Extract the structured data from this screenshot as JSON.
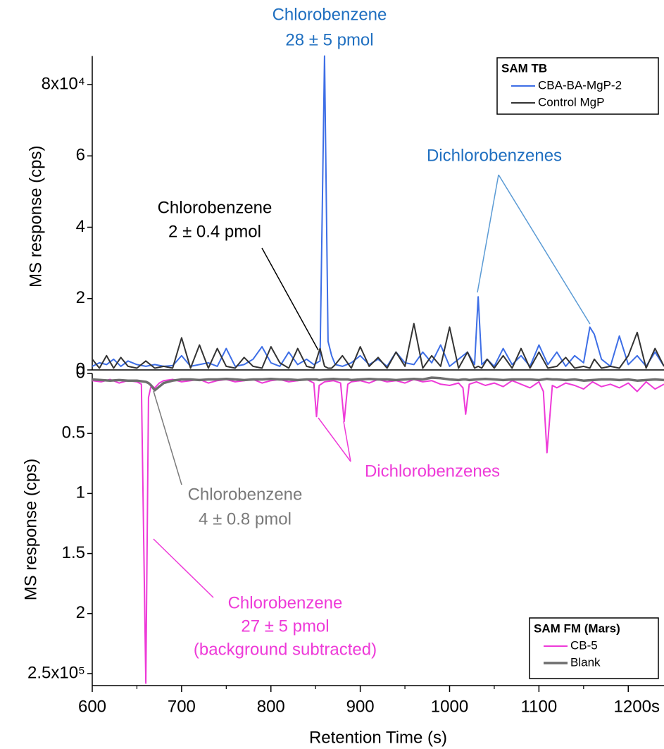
{
  "chart_data": [
    {
      "type": "line",
      "y_label": "MS response (cps)",
      "xlim": [
        600,
        1240
      ],
      "ylim": [
        0,
        88000
      ],
      "inverted": false,
      "yticks": [
        0,
        {
          "value": 20000,
          "label": "2"
        },
        {
          "value": 40000,
          "label": "4"
        },
        {
          "value": 60000,
          "label": "6"
        },
        {
          "value": 80000,
          "label": "8x10⁴"
        }
      ],
      "legend_title": "SAM TB",
      "legend_position": "upper right",
      "x": [
        600,
        608,
        616,
        624,
        632,
        640,
        650,
        660,
        670,
        680,
        690,
        700,
        710,
        720,
        730,
        740,
        750,
        760,
        770,
        780,
        790,
        800,
        810,
        820,
        830,
        840,
        848,
        855,
        860,
        864,
        868,
        872,
        880,
        890,
        900,
        910,
        920,
        930,
        940,
        950,
        960,
        970,
        980,
        990,
        1000,
        1010,
        1020,
        1028,
        1032,
        1036,
        1042,
        1050,
        1060,
        1070,
        1080,
        1090,
        1100,
        1110,
        1120,
        1130,
        1140,
        1150,
        1157,
        1162,
        1170,
        1180,
        1190,
        1200,
        1210,
        1220,
        1230,
        1240
      ],
      "series": [
        {
          "name": "CBA-BA-MgP-2",
          "color": "#3d6ee6",
          "width": 2,
          "values": [
            1000,
            2000,
            1500,
            3000,
            1000,
            2500,
            1500,
            1000,
            1500,
            1000,
            1200,
            4000,
            1000,
            1500,
            2000,
            1000,
            6000,
            1000,
            1500,
            3000,
            6500,
            2000,
            1000,
            5000,
            1500,
            3000,
            1500,
            2500,
            88000,
            8000,
            4000,
            1500,
            1000,
            2000,
            4000,
            1500,
            3000,
            1000,
            5000,
            2000,
            1500,
            5000,
            2000,
            7000,
            1000,
            3000,
            5000,
            1500,
            20500,
            1500,
            3000,
            1000,
            6000,
            1500,
            4000,
            1000,
            7000,
            1500,
            5000,
            1000,
            4000,
            2000,
            12000,
            10000,
            3000,
            1000,
            9500,
            1500,
            4000,
            1000,
            5000,
            1000
          ]
        },
        {
          "name": "Control MgP",
          "color": "#333333",
          "width": 2,
          "values": [
            3000,
            500,
            4000,
            500,
            3500,
            1000,
            500,
            2500,
            500,
            1000,
            500,
            9000,
            500,
            7000,
            500,
            6000,
            1000,
            500,
            3500,
            1000,
            500,
            6500,
            2000,
            500,
            6000,
            1000,
            500,
            6000,
            1000,
            500,
            500,
            1500,
            4000,
            500,
            6500,
            1000,
            3500,
            500,
            5000,
            1000,
            13000,
            500,
            4000,
            1000,
            12000,
            500,
            5000,
            500,
            1000,
            500,
            3000,
            500,
            4000,
            500,
            6000,
            500,
            5000,
            500,
            1000,
            3500,
            500,
            1000,
            500,
            3000,
            500,
            1000,
            500,
            4000,
            10500,
            500,
            6000,
            1000
          ]
        }
      ],
      "annotations": [
        {
          "text": [
            "Chlorobenzene",
            "28 ± 5 pmol"
          ],
          "color": "#1f6fc0"
        },
        {
          "text": [
            "Dichlorobenzenes"
          ],
          "color": "#1f6fc0"
        },
        {
          "text": [
            "Chlorobenzene",
            "2 ± 0.4 pmol"
          ],
          "color": "#000000"
        }
      ]
    },
    {
      "type": "line",
      "y_label": "MS response (cps)",
      "x_label": "Retention Time (s)",
      "xlim": [
        600,
        1240
      ],
      "xticks": [
        600,
        700,
        800,
        900,
        1000,
        1100,
        {
          "value": 1200,
          "label": "1200s"
        }
      ],
      "xminorticks": [
        650,
        750,
        850,
        950,
        1050,
        1150
      ],
      "ylim": [
        0,
        260000
      ],
      "inverted": true,
      "yticks": [
        0,
        {
          "value": 50000,
          "label": "0.5"
        },
        {
          "value": 100000,
          "label": "1"
        },
        {
          "value": 150000,
          "label": "1.5"
        },
        {
          "value": 200000,
          "label": "2"
        },
        {
          "value": 250000,
          "label": "2.5x10⁵"
        }
      ],
      "legend_title": "SAM FM (Mars)",
      "legend_position": "lower right",
      "x": [
        600,
        610,
        620,
        630,
        640,
        650,
        655,
        660,
        663,
        666,
        670,
        675,
        680,
        690,
        700,
        710,
        720,
        730,
        740,
        750,
        760,
        770,
        780,
        790,
        800,
        810,
        820,
        830,
        840,
        848,
        851,
        854,
        860,
        870,
        878,
        882,
        886,
        890,
        900,
        910,
        920,
        930,
        940,
        950,
        960,
        970,
        980,
        990,
        1000,
        1010,
        1015,
        1018,
        1022,
        1030,
        1040,
        1050,
        1060,
        1070,
        1080,
        1090,
        1100,
        1105,
        1109,
        1115,
        1120,
        1130,
        1140,
        1150,
        1160,
        1170,
        1180,
        1190,
        1200,
        1210,
        1220,
        1230,
        1240
      ],
      "series": [
        {
          "name": "CB-5",
          "color": "#ee3ad8",
          "width": 2,
          "values": [
            6000,
            7000,
            5000,
            8000,
            6000,
            7000,
            9000,
            258000,
            20000,
            10000,
            12000,
            8000,
            6000,
            5000,
            7000,
            6000,
            5000,
            8000,
            6000,
            5000,
            7000,
            6000,
            5000,
            8000,
            6000,
            5000,
            7000,
            6000,
            5000,
            8000,
            36000,
            10000,
            7000,
            6000,
            8000,
            40000,
            9000,
            7000,
            6000,
            8000,
            5000,
            7000,
            6000,
            8000,
            5000,
            7000,
            6000,
            9000,
            10000,
            8000,
            12000,
            34000,
            9000,
            7000,
            10000,
            8000,
            11000,
            6000,
            9000,
            12000,
            7000,
            15000,
            66000,
            10000,
            12000,
            8000,
            10000,
            13000,
            7000,
            11000,
            9000,
            12000,
            8000,
            15000,
            7000,
            13000,
            9000
          ]
        },
        {
          "name": "Blank",
          "color": "#6e6e6e",
          "width": 3.5,
          "values": [
            5000,
            5500,
            6000,
            5500,
            6000,
            6000,
            6500,
            7000,
            8000,
            10000,
            14000,
            11000,
            8000,
            6000,
            5000,
            5000,
            5500,
            5000,
            5000,
            4500,
            5000,
            5500,
            5000,
            5000,
            4500,
            5000,
            5000,
            5500,
            5000,
            5000,
            5000,
            5500,
            5000,
            4500,
            5000,
            5000,
            5000,
            5500,
            5000,
            4500,
            5000,
            5000,
            5500,
            5000,
            4500,
            5000,
            3500,
            4000,
            5000,
            5500,
            5000,
            5000,
            5500,
            5000,
            4500,
            5000,
            5500,
            5000,
            5000,
            5000,
            5500,
            5000,
            4500,
            5000,
            5000,
            5500,
            5000,
            6000,
            5500,
            5000,
            5000,
            5500,
            5000,
            6000,
            5500,
            5000,
            5500
          ]
        }
      ],
      "annotations": [
        {
          "text": [
            "Dichlorobenzenes"
          ],
          "color": "#ee3ad8"
        },
        {
          "text": [
            "Chlorobenzene",
            "4 ± 0.8 pmol"
          ],
          "color": "#7a7a7a"
        },
        {
          "text": [
            "Chlorobenzene",
            "27 ± 5 pmol",
            "(background subtracted)"
          ],
          "color": "#ee3ad8"
        }
      ]
    }
  ]
}
